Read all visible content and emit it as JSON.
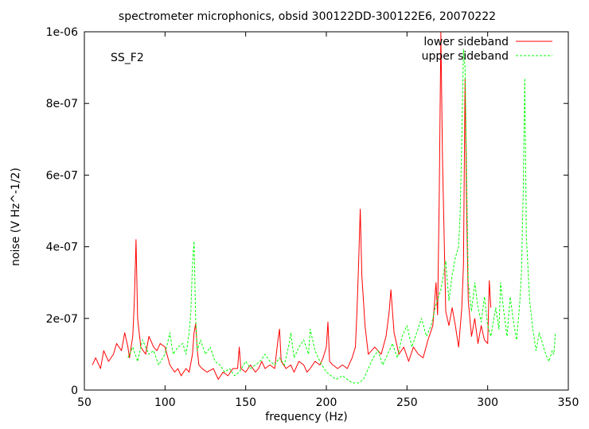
{
  "chart_data": {
    "type": "line",
    "title": "spectrometer microphonics, obsid 300122DD-300122E6, 20070222",
    "annotation": "SS_F2",
    "xlabel": "frequency (Hz)",
    "ylabel": "noise (V Hz^-1/2)",
    "xlim": [
      50,
      350
    ],
    "ylim": [
      0,
      1e-06
    ],
    "x_ticks": [
      50,
      100,
      150,
      200,
      250,
      300,
      350
    ],
    "x_tick_labels": [
      "50",
      "100",
      "150",
      "200",
      "250",
      "300",
      "350"
    ],
    "y_ticks": [
      0,
      2e-07,
      4e-07,
      6e-07,
      8e-07,
      1e-06
    ],
    "y_tick_labels": [
      "0",
      "2e-07",
      "4e-07",
      "6e-07",
      "8e-07",
      "1e-06"
    ],
    "grid": false,
    "legend": "top-right",
    "series": [
      {
        "name": "lower sideband",
        "color": "#ff0000",
        "dashed": false,
        "x": [
          55,
          57,
          60,
          62,
          65,
          68,
          70,
          73,
          75,
          77,
          78,
          80,
          81,
          82,
          83,
          85,
          88,
          90,
          93,
          95,
          97,
          100,
          103,
          106,
          108,
          110,
          113,
          115,
          117,
          118,
          119,
          120,
          121,
          123,
          126,
          130,
          133,
          136,
          139,
          142,
          145,
          146,
          147,
          150,
          153,
          156,
          158,
          160,
          162,
          165,
          168,
          170,
          171,
          172,
          175,
          178,
          180,
          183,
          186,
          188,
          190,
          193,
          196,
          198,
          200,
          201,
          202,
          204,
          207,
          210,
          213,
          216,
          218,
          219,
          220,
          221,
          222,
          224,
          226,
          230,
          234,
          237,
          239,
          240,
          242,
          245,
          248,
          251,
          254,
          257,
          260,
          263,
          266,
          268,
          269,
          270,
          271,
          272,
          274,
          276,
          278,
          280,
          282,
          284,
          285,
          286,
          287,
          288,
          290,
          292,
          294,
          296,
          298,
          300,
          301,
          302
        ],
        "y": [
          7e-08,
          9e-08,
          6e-08,
          1.1e-07,
          8e-08,
          1e-07,
          1.3e-07,
          1.1e-07,
          1.6e-07,
          1.2e-07,
          9e-08,
          1.5e-07,
          2.5e-07,
          4.2e-07,
          2e-07,
          1.2e-07,
          1e-07,
          1.5e-07,
          1.2e-07,
          1.1e-07,
          1.3e-07,
          1.2e-07,
          7e-08,
          5e-08,
          6e-08,
          4e-08,
          6e-08,
          5e-08,
          1e-07,
          1.6e-07,
          1.85e-07,
          1.1e-07,
          7e-08,
          6e-08,
          5e-08,
          6e-08,
          3e-08,
          5e-08,
          4e-08,
          6e-08,
          6e-08,
          1.2e-07,
          6e-08,
          5e-08,
          7e-08,
          5e-08,
          6e-08,
          8e-08,
          6e-08,
          7e-08,
          6e-08,
          1.4e-07,
          1.7e-07,
          8e-08,
          6e-08,
          7e-08,
          5e-08,
          8e-08,
          7e-08,
          5e-08,
          6e-08,
          8e-08,
          7e-08,
          9e-08,
          1.2e-07,
          1.9e-07,
          8e-08,
          7e-08,
          6e-08,
          7e-08,
          6e-08,
          9e-08,
          1.2e-07,
          2.2e-07,
          3.5e-07,
          5.05e-07,
          3.2e-07,
          1.8e-07,
          1e-07,
          1.2e-07,
          1e-07,
          1.5e-07,
          2.2e-07,
          2.8e-07,
          1.6e-07,
          1e-07,
          1.2e-07,
          8e-08,
          1.2e-07,
          1e-07,
          9e-08,
          1.4e-07,
          1.8e-07,
          3e-07,
          2.1e-07,
          5.5e-07,
          1e-06,
          6.5e-07,
          2.2e-07,
          1.8e-07,
          2.3e-07,
          1.8e-07,
          1.2e-07,
          2.3e-07,
          3.5e-07,
          8.7e-07,
          5e-07,
          2.5e-07,
          1.5e-07,
          2e-07,
          1.3e-07,
          1.8e-07,
          1.4e-07,
          1.3e-07,
          3.05e-07,
          2.3e-07
        ]
      },
      {
        "name": "upper sideband",
        "color": "#00ff00",
        "dashed": true,
        "x": [
          77,
          80,
          83,
          86,
          90,
          93,
          96,
          100,
          103,
          105,
          108,
          111,
          113,
          115,
          116,
          117,
          118,
          119,
          120,
          122,
          125,
          128,
          131,
          134,
          137,
          140,
          143,
          146,
          150,
          153,
          156,
          159,
          162,
          165,
          168,
          171,
          174,
          177,
          178,
          180,
          183,
          186,
          189,
          190,
          193,
          196,
          200,
          203,
          206,
          210,
          213,
          216,
          220,
          223,
          226,
          229,
          232,
          235,
          238,
          241,
          244,
          247,
          250,
          253,
          256,
          259,
          262,
          265,
          268,
          271,
          274,
          276,
          278,
          280,
          282,
          283,
          284,
          285,
          286,
          287,
          288,
          290,
          292,
          294,
          296,
          298,
          300,
          302,
          305,
          307,
          308,
          310,
          312,
          314,
          316,
          318,
          320,
          321,
          322,
          323,
          324,
          326,
          328,
          330,
          332,
          334,
          336,
          338,
          340,
          341,
          342
        ],
        "y": [
          9e-08,
          1.2e-07,
          8e-08,
          1.4e-07,
          1e-07,
          1.1e-07,
          7e-08,
          1e-07,
          1.6e-07,
          1e-07,
          1.2e-07,
          1.3e-07,
          1e-07,
          1.6e-07,
          2.2e-07,
          3.5e-07,
          4.15e-07,
          2e-07,
          1.1e-07,
          1.4e-07,
          1e-07,
          1.2e-07,
          8e-08,
          7e-08,
          5e-08,
          6e-08,
          4e-08,
          5e-08,
          8e-08,
          6e-08,
          7e-08,
          8e-08,
          1e-07,
          8e-08,
          7e-08,
          9e-08,
          7e-08,
          1.3e-07,
          1.6e-07,
          9e-08,
          1.2e-07,
          1.4e-07,
          1e-07,
          1.7e-07,
          1.1e-07,
          8e-08,
          5e-08,
          4e-08,
          3e-08,
          4e-08,
          3e-08,
          2e-08,
          2e-08,
          3e-08,
          6e-08,
          9e-08,
          1.1e-07,
          7e-08,
          1e-07,
          1.3e-07,
          9e-08,
          1.5e-07,
          1.8e-07,
          1.2e-07,
          1.6e-07,
          2e-07,
          1.5e-07,
          1.8e-07,
          2.4e-07,
          2.8e-07,
          3.6e-07,
          2.5e-07,
          3.2e-07,
          3.7e-07,
          4e-07,
          5e-07,
          7e-07,
          9.5e-07,
          9e-07,
          6e-07,
          3e-07,
          2.2e-07,
          3e-07,
          2.3e-07,
          1.9e-07,
          2.6e-07,
          1.8e-07,
          1.5e-07,
          2.3e-07,
          1.7e-07,
          3e-07,
          2.2e-07,
          1.5e-07,
          2.6e-07,
          1.9e-07,
          1.4e-07,
          2.5e-07,
          3.3e-07,
          5.5e-07,
          8.7e-07,
          4.3e-07,
          2.5e-07,
          1.7e-07,
          1.1e-07,
          1.6e-07,
          1.3e-07,
          1e-07,
          8e-08,
          1.1e-07,
          1e-07,
          1.6e-07
        ]
      }
    ]
  }
}
